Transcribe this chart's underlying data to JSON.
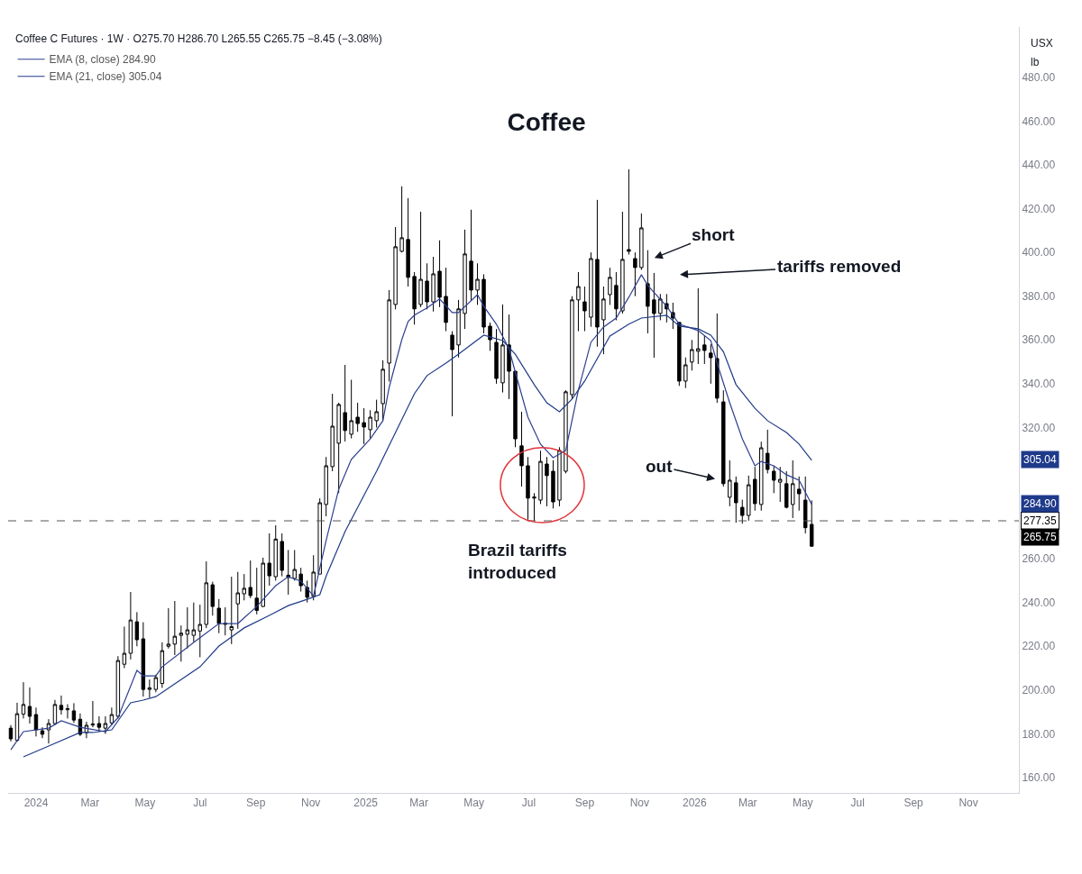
{
  "chart_data": {
    "type": "candlestick",
    "title": "Coffee",
    "subtitle": "Coffee C Futures · 1W · O275.70 H286.70 L265.55 C265.75 −8.45 (−3.08%)",
    "color": "#000000",
    "x": [
      "2023-12-04",
      "2023-12-11",
      "2023-12-18",
      "2023-12-25",
      "2024-01-01",
      "2024-01-08",
      "2024-01-15",
      "2024-01-22",
      "2024-01-29",
      "2024-02-05",
      "2024-02-12",
      "2024-02-19",
      "2024-02-26",
      "2024-03-04",
      "2024-03-11",
      "2024-03-18",
      "2024-03-25",
      "2024-04-01",
      "2024-04-08",
      "2024-04-15",
      "2024-04-22",
      "2024-04-29",
      "2024-05-06",
      "2024-05-13",
      "2024-05-20",
      "2024-05-27",
      "2024-06-03",
      "2024-06-10",
      "2024-06-17",
      "2024-06-24",
      "2024-07-01",
      "2024-07-08",
      "2024-07-15",
      "2024-07-22",
      "2024-07-29",
      "2024-08-05",
      "2024-08-12",
      "2024-08-19",
      "2024-08-26",
      "2024-09-02",
      "2024-09-09",
      "2024-09-16",
      "2024-09-23",
      "2024-09-30",
      "2024-10-07",
      "2024-10-14",
      "2024-10-21",
      "2024-10-28",
      "2024-11-04",
      "2024-11-11",
      "2024-11-18",
      "2024-11-25",
      "2024-12-02",
      "2024-12-09",
      "2024-12-16",
      "2024-12-23",
      "2024-12-30",
      "2025-01-06",
      "2025-01-13",
      "2025-01-20",
      "2025-01-27",
      "2025-02-03",
      "2025-02-10",
      "2025-02-17",
      "2025-02-24",
      "2025-03-03",
      "2025-03-10",
      "2025-03-17",
      "2025-03-24",
      "2025-03-31",
      "2025-04-07",
      "2025-04-14",
      "2025-04-21",
      "2025-04-28",
      "2025-05-05",
      "2025-05-12",
      "2025-05-19",
      "2025-05-26",
      "2025-06-02",
      "2025-06-09",
      "2025-06-16",
      "2025-06-23",
      "2025-06-30",
      "2025-07-07",
      "2025-07-14",
      "2025-07-21",
      "2025-07-28",
      "2025-08-04",
      "2025-08-11",
      "2025-08-18",
      "2025-08-25",
      "2025-09-01",
      "2025-09-08",
      "2025-09-15",
      "2025-09-22",
      "2025-09-29",
      "2025-10-06",
      "2025-10-13",
      "2025-10-20",
      "2025-10-27",
      "2025-11-03",
      "2025-11-10",
      "2025-11-17",
      "2025-11-24",
      "2025-12-01",
      "2025-12-08",
      "2025-12-15",
      "2025-12-22",
      "2025-12-29",
      "2026-01-05",
      "2026-01-12",
      "2026-01-19",
      "2026-01-26",
      "2026-02-02",
      "2026-02-09",
      "2026-02-16",
      "2026-02-23",
      "2026-03-02",
      "2026-03-09",
      "2026-03-16",
      "2026-03-23",
      "2026-03-30",
      "2026-04-06",
      "2026-04-13",
      "2026-04-20",
      "2026-04-27",
      "2026-05-04",
      "2026-05-11"
    ],
    "ohlc": [
      [
        182.6,
        184,
        176.5,
        177.7
      ],
      [
        177,
        194.2,
        176.5,
        189.2
      ],
      [
        189,
        203.6,
        187,
        193.4
      ],
      [
        192.5,
        201.2,
        184.7,
        188
      ],
      [
        188.8,
        192,
        178.8,
        181.8
      ],
      [
        181.4,
        183,
        178,
        179.8
      ],
      [
        181.8,
        186.7,
        175.6,
        184.7
      ],
      [
        184.7,
        195.5,
        184,
        193.4
      ],
      [
        193,
        197.5,
        188.8,
        191
      ],
      [
        191,
        193.5,
        187,
        191.5
      ],
      [
        190.5,
        194,
        185,
        186.3
      ],
      [
        186.7,
        189.3,
        179,
        179.8
      ],
      [
        180.5,
        185.5,
        178,
        183.9
      ],
      [
        184,
        195,
        183,
        184.5
      ],
      [
        184.7,
        188,
        181,
        183
      ],
      [
        182.6,
        188,
        180,
        184.7
      ],
      [
        185,
        192,
        184,
        188.8
      ],
      [
        188,
        215.5,
        187,
        213.5
      ],
      [
        211.8,
        229,
        210,
        216.8
      ],
      [
        216.8,
        244.8,
        214,
        232
      ],
      [
        231.2,
        235.6,
        220,
        223
      ],
      [
        223.4,
        231,
        197,
        200.3
      ],
      [
        200.3,
        204.8,
        196.4,
        201
      ],
      [
        200.3,
        207,
        199,
        205.7
      ],
      [
        203,
        221.8,
        201,
        218
      ],
      [
        220,
        237.4,
        219,
        221
      ],
      [
        221,
        240.7,
        216,
        224.6
      ],
      [
        225,
        229.5,
        213,
        226
      ],
      [
        225.5,
        237.8,
        219,
        227.5
      ],
      [
        225,
        240,
        222,
        227.5
      ],
      [
        227,
        239,
        215,
        230
      ],
      [
        230,
        258.8,
        228.3,
        249
      ],
      [
        248.1,
        249.5,
        234,
        238.2
      ],
      [
        237.4,
        241.6,
        226,
        230.4
      ],
      [
        230,
        237.8,
        225,
        230.5
      ],
      [
        227.5,
        251.8,
        221,
        229
      ],
      [
        239.4,
        254,
        228,
        244.4
      ],
      [
        244,
        253,
        241,
        246.5
      ],
      [
        246.9,
        259.2,
        242,
        243.2
      ],
      [
        242,
        255.9,
        234.6,
        236.4
      ],
      [
        238.2,
        260.5,
        238,
        258
      ],
      [
        258,
        271.6,
        247.7,
        252.2
      ],
      [
        251.8,
        275.3,
        250,
        269
      ],
      [
        267.9,
        271.6,
        252,
        254.7
      ],
      [
        252.5,
        264,
        243.6,
        251.5
      ],
      [
        251,
        264,
        250,
        255.1
      ],
      [
        253,
        255.9,
        245,
        247.7
      ],
      [
        246.9,
        250,
        240,
        242.4
      ],
      [
        242.8,
        261.6,
        241,
        253.9
      ],
      [
        253,
        287.6,
        253,
        285.6
      ],
      [
        284.8,
        306.5,
        279.4,
        302.5
      ],
      [
        302.1,
        335.4,
        300,
        320.6
      ],
      [
        312.8,
        331.3,
        290,
        330.5
      ],
      [
        326.8,
        348.6,
        313.6,
        318.6
      ],
      [
        316.9,
        341.8,
        315,
        323.1
      ],
      [
        324.7,
        331.3,
        318,
        321.8
      ],
      [
        322.2,
        328.8,
        312.4,
        320.2
      ],
      [
        319,
        327.9,
        315,
        324.7
      ],
      [
        323.1,
        332.7,
        320,
        327.2
      ],
      [
        330.9,
        350.7,
        323,
        346.6
      ],
      [
        349.4,
        382.8,
        341,
        378.3
      ],
      [
        376.2,
        411.6,
        374,
        402.6
      ],
      [
        400.5,
        430.2,
        400,
        406.7
      ],
      [
        405.9,
        424.8,
        384.4,
        388.6
      ],
      [
        389,
        391,
        367,
        374.2
      ],
      [
        376.2,
        418.6,
        375,
        387.7
      ],
      [
        386.9,
        395,
        374,
        377.4
      ],
      [
        377.4,
        398,
        373,
        390.2
      ],
      [
        391.4,
        405.5,
        375,
        379.5
      ],
      [
        379.9,
        393,
        364,
        368
      ],
      [
        362.2,
        364,
        325.1,
        355.6
      ],
      [
        357.7,
        378.3,
        352,
        374.2
      ],
      [
        372.1,
        410.4,
        365,
        399.3
      ],
      [
        396,
        419.5,
        378,
        382.8
      ],
      [
        382.8,
        395,
        376,
        387.7
      ],
      [
        387.7,
        390,
        363,
        365.9
      ],
      [
        366.3,
        368,
        355,
        360.1
      ],
      [
        358.9,
        365,
        340,
        342.4
      ],
      [
        340.4,
        376.2,
        336,
        357.7
      ],
      [
        357.7,
        371.6,
        333,
        345.7
      ],
      [
        345.7,
        346,
        311,
        314.8
      ],
      [
        311.6,
        327.2,
        293,
        302.5
      ],
      [
        302.5,
        306.5,
        277.9,
        287.7
      ],
      [
        287.7,
        290,
        277.35,
        288.2
      ],
      [
        286.8,
        309.4,
        285,
        304.5
      ],
      [
        303.3,
        306.5,
        284,
        298
      ],
      [
        300,
        305,
        283,
        286
      ],
      [
        286.8,
        311,
        284,
        309.5
      ],
      [
        300,
        337,
        299,
        336.3
      ],
      [
        335,
        380,
        333,
        378.3
      ],
      [
        378.3,
        391,
        364,
        384.4
      ],
      [
        377.4,
        384.4,
        364,
        373.3
      ],
      [
        370.4,
        400,
        366,
        397.2
      ],
      [
        396.8,
        424,
        356.9,
        365.9
      ],
      [
        369.2,
        384.4,
        353.5,
        378.7
      ],
      [
        380.7,
        393,
        376,
        388.6
      ],
      [
        384.9,
        391,
        369,
        374.2
      ],
      [
        373.3,
        418.6,
        372,
        396.8
      ],
      [
        401.3,
        438,
        399,
        400.5
      ],
      [
        397.2,
        400,
        380,
        393.1
      ],
      [
        393.1,
        417.8,
        392,
        411.2
      ],
      [
        385.7,
        401,
        363,
        375.4
      ],
      [
        378.3,
        390.6,
        351.9,
        372.1
      ],
      [
        372.1,
        381,
        369,
        378.7
      ],
      [
        376.6,
        381,
        368,
        374.2
      ],
      [
        372.5,
        377,
        365,
        370
      ],
      [
        368,
        368,
        339,
        341.2
      ],
      [
        341.2,
        352,
        338,
        348.6
      ],
      [
        349.9,
        360,
        346,
        355.6
      ],
      [
        354.8,
        383.6,
        349,
        356
      ],
      [
        357.7,
        362,
        349,
        355.2
      ],
      [
        354,
        358,
        340,
        351.9
      ],
      [
        351.5,
        372.1,
        331.3,
        333.4
      ],
      [
        331.7,
        337,
        293,
        294.3
      ],
      [
        288.1,
        305,
        284,
        295.9
      ],
      [
        294.7,
        297.6,
        276.5,
        285.6
      ],
      [
        283.5,
        287,
        276,
        279.8
      ],
      [
        279.8,
        298,
        277.4,
        293.8
      ],
      [
        296.3,
        302,
        282,
        285.2
      ],
      [
        284.8,
        313.5,
        282,
        310.7
      ],
      [
        308.2,
        319,
        299,
        300.8
      ],
      [
        300,
        302.5,
        290,
        295.9
      ],
      [
        295,
        302,
        286,
        296.3
      ],
      [
        294.3,
        300,
        283,
        283.5
      ],
      [
        284.8,
        305,
        278.6,
        294.3
      ],
      [
        291.8,
        297.6,
        282,
        289.7
      ],
      [
        286.8,
        297.6,
        271.6,
        274.2
      ],
      [
        275.7,
        286.7,
        265.55,
        265.75
      ]
    ],
    "series": [
      {
        "name": "EMA (8, close) 284.90",
        "type": "line",
        "color": "#2e3f8f",
        "x": [
          "2023-12-04",
          "2023-12-18",
          "2024-01-15",
          "2024-01-29",
          "2024-02-19",
          "2024-03-18",
          "2024-04-01",
          "2024-04-22",
          "2024-04-29",
          "2024-05-13",
          "2024-05-20",
          "2024-06-24",
          "2024-07-22",
          "2024-08-12",
          "2024-09-02",
          "2024-09-23",
          "2024-10-07",
          "2024-10-21",
          "2024-11-04",
          "2024-11-18",
          "2024-12-02",
          "2024-12-16",
          "2025-01-06",
          "2025-01-20",
          "2025-01-27",
          "2025-02-10",
          "2025-02-17",
          "2025-02-24",
          "2025-03-10",
          "2025-03-24",
          "2025-04-07",
          "2025-04-14",
          "2025-05-05",
          "2025-05-12",
          "2025-05-26",
          "2025-06-09",
          "2025-06-16",
          "2025-06-30",
          "2025-07-14",
          "2025-07-28",
          "2025-08-11",
          "2025-08-25",
          "2025-09-08",
          "2025-09-22",
          "2025-10-06",
          "2025-10-20",
          "2025-11-03",
          "2025-11-10",
          "2025-12-01",
          "2025-12-15",
          "2026-01-05",
          "2026-01-19",
          "2026-01-26",
          "2026-02-09",
          "2026-02-23",
          "2026-03-09",
          "2026-03-16",
          "2026-03-30",
          "2026-04-13",
          "2026-04-27",
          "2026-05-11"
        ],
        "values": [
          172.7,
          181,
          182.6,
          186,
          183,
          181,
          187.4,
          209,
          206.5,
          206.5,
          210.6,
          221.8,
          230.4,
          230.4,
          238.2,
          247.7,
          251.8,
          249.8,
          243,
          268.3,
          291.8,
          305.4,
          314.8,
          323.1,
          338.3,
          360.1,
          368.4,
          371.3,
          374.6,
          378.7,
          372.5,
          372.5,
          380.7,
          375.4,
          367.2,
          356,
          345.3,
          324.7,
          312.4,
          306.2,
          309.5,
          337.1,
          359,
          365.9,
          370,
          379.5,
          389.8,
          384.9,
          375.4,
          367.2,
          364.3,
          359.7,
          349.4,
          331.3,
          314.8,
          302.5,
          304.5,
          302.5,
          298.4,
          295.9,
          284.9
        ]
      },
      {
        "name": "EMA (21, close) 305.04",
        "type": "line",
        "color": "#1f3b88",
        "x": [
          "2023-12-18",
          "2024-01-15",
          "2024-02-19",
          "2024-03-04",
          "2024-03-25",
          "2024-04-15",
          "2024-04-29",
          "2024-05-13",
          "2024-07-01",
          "2024-07-22",
          "2024-08-19",
          "2024-09-16",
          "2024-10-07",
          "2024-10-28",
          "2024-11-11",
          "2024-11-18",
          "2024-12-09",
          "2025-01-13",
          "2025-02-24",
          "2025-03-10",
          "2025-03-31",
          "2025-04-14",
          "2025-05-12",
          "2025-06-02",
          "2025-06-16",
          "2025-07-07",
          "2025-07-21",
          "2025-08-04",
          "2025-08-18",
          "2025-09-01",
          "2025-09-29",
          "2025-10-20",
          "2025-11-03",
          "2025-12-01",
          "2025-12-15",
          "2026-01-05",
          "2026-01-19",
          "2026-02-02",
          "2026-02-16",
          "2026-03-09",
          "2026-03-23",
          "2026-04-13",
          "2026-04-27",
          "2026-05-11"
        ],
        "values": [
          169.5,
          174.4,
          180.6,
          180.6,
          181.8,
          194.2,
          195.4,
          197,
          210.6,
          220.1,
          228.4,
          234.1,
          238.6,
          241.5,
          243.6,
          252,
          272.4,
          300,
          335.4,
          343.7,
          349.4,
          353.5,
          362.2,
          359.7,
          353.5,
          339.6,
          331.3,
          327.2,
          333,
          341.2,
          361.8,
          367.2,
          370,
          371.3,
          366.3,
          365.1,
          362.2,
          354.6,
          339.6,
          328.8,
          323.1,
          317.7,
          312.4,
          305.0
        ]
      }
    ],
    "ref_lines": [
      {
        "axis": "y",
        "value": 277.35,
        "label": "277.35",
        "color": "#555555",
        "line_style": "dashed"
      }
    ],
    "annotations": [
      "short",
      "tariffs removed",
      "out",
      "Brazil tariffs\nintroduced",
      "305.04",
      "284.90",
      "265.75",
      "USX",
      "lb"
    ],
    "xlim": [
      "2023-12-01",
      "2026-12-27"
    ],
    "xticks": [
      {
        "value": "2024-01-01",
        "label": "2024"
      },
      {
        "value": "2024-03-01",
        "label": "Mar"
      },
      {
        "value": "2024-05-01",
        "label": "May"
      },
      {
        "value": "2024-07-01",
        "label": "Jul"
      },
      {
        "value": "2024-09-01",
        "label": "Sep"
      },
      {
        "value": "2024-11-01",
        "label": "Nov"
      },
      {
        "value": "2025-01-01",
        "label": "2025"
      },
      {
        "value": "2025-03-01",
        "label": "Mar"
      },
      {
        "value": "2025-05-01",
        "label": "May"
      },
      {
        "value": "2025-07-01",
        "label": "Jul"
      },
      {
        "value": "2025-09-01",
        "label": "Sep"
      },
      {
        "value": "2025-11-01",
        "label": "Nov"
      },
      {
        "value": "2026-01-01",
        "label": "2026"
      },
      {
        "value": "2026-03-01",
        "label": "Mar"
      },
      {
        "value": "2026-05-01",
        "label": "May"
      },
      {
        "value": "2026-07-01",
        "label": "Jul"
      },
      {
        "value": "2026-09-01",
        "label": "Sep"
      },
      {
        "value": "2026-11-01",
        "label": "Nov"
      }
    ],
    "ylim": [
      153,
      503
    ],
    "yticks": [
      {
        "value": 160,
        "label": "160.00"
      },
      {
        "value": 180,
        "label": "180.00"
      },
      {
        "value": 200,
        "label": "200.00"
      },
      {
        "value": 220,
        "label": "220.00"
      },
      {
        "value": 240,
        "label": "240.00"
      },
      {
        "value": 260,
        "label": "260.00"
      },
      {
        "value": 320,
        "label": "320.00"
      },
      {
        "value": 340,
        "label": "340.00"
      },
      {
        "value": 360,
        "label": "360.00"
      },
      {
        "value": 380,
        "label": "380.00"
      },
      {
        "value": 400,
        "label": "400.00"
      },
      {
        "value": 420,
        "label": "420.00"
      },
      {
        "value": 440,
        "label": "440.00"
      },
      {
        "value": 460,
        "label": "460.00"
      },
      {
        "value": 480,
        "label": "480.00"
      }
    ],
    "legend": "top left"
  }
}
